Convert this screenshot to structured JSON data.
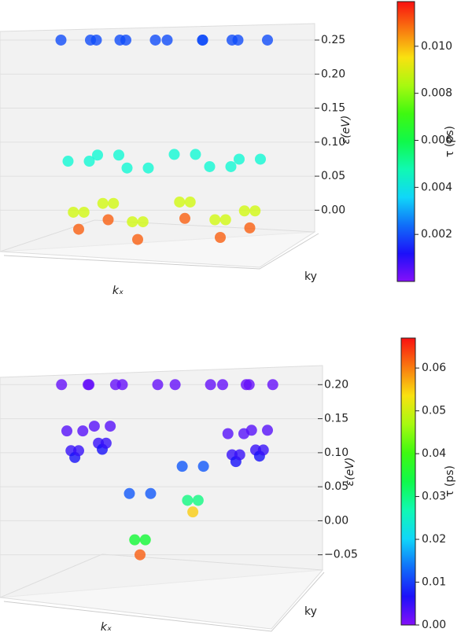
{
  "chart_data": [
    {
      "type": "scatter3d",
      "cmap": "rainbow",
      "zlabel": "ε(eV)",
      "xlabel": "kₓ",
      "ylabel": "ky",
      "colorbar_label": "τ (ps)",
      "xlim": [
        0,
        1
      ],
      "zlim": [
        -0.04,
        0.28
      ],
      "zticks": [
        {
          "value": 0,
          "label": "0.00"
        },
        0.05,
        {
          "value": 0.1,
          "label": "0.10"
        },
        0.15,
        {
          "value": 0.2,
          "label": "0.20"
        },
        0.25
      ],
      "clim": [
        0,
        0.0119
      ],
      "cticks": [
        0.002,
        0.004,
        0.006,
        0.008,
        {
          "value": 0.01,
          "label": "0.010"
        }
      ],
      "series": [
        {
          "x": [
            0.18,
            0.204,
            0.222,
            0.24,
            0.258,
            0.276,
            0.3
          ],
          "values": [
            0.25,
            0.072,
            -0.003,
            -0.028,
            -0.003,
            0.072,
            0.25
          ],
          "c": [
            0.002,
            0.0044,
            0.0088,
            0.011,
            0.0088,
            0.0044,
            0.002
          ]
        },
        {
          "x": [
            0.28,
            0.304,
            0.322,
            0.34,
            0.358,
            0.376,
            0.4
          ],
          "values": [
            0.25,
            0.081,
            0.01,
            -0.014,
            0.01,
            0.081,
            0.25
          ],
          "c": [
            0.002,
            0.0044,
            0.0088,
            0.011,
            0.0088,
            0.0044,
            0.002
          ]
        },
        {
          "x": [
            0.38,
            0.404,
            0.422,
            0.44,
            0.458,
            0.476,
            0.5
          ],
          "values": [
            0.25,
            0.062,
            -0.017,
            -0.043,
            -0.017,
            0.062,
            0.25
          ],
          "c": [
            0.002,
            0.0044,
            0.0088,
            0.011,
            0.0088,
            0.0044,
            0.002
          ]
        },
        {
          "x": [
            0.54,
            0.564,
            0.582,
            0.6,
            0.618,
            0.636,
            0.66
          ],
          "values": [
            0.25,
            0.082,
            0.012,
            -0.012,
            0.012,
            0.082,
            0.25
          ],
          "c": [
            0.002,
            0.0044,
            0.0088,
            0.011,
            0.0088,
            0.0044,
            0.002
          ]
        },
        {
          "x": [
            0.66,
            0.684,
            0.702,
            0.72,
            0.738,
            0.756,
            0.78
          ],
          "values": [
            0.25,
            0.064,
            -0.014,
            -0.04,
            -0.014,
            0.064,
            0.25
          ],
          "c": [
            0.002,
            0.0044,
            0.0088,
            0.011,
            0.0088,
            0.0044,
            0.002
          ]
        },
        {
          "x": [
            0.76,
            0.784,
            0.802,
            0.82,
            0.838,
            0.856,
            0.88
          ],
          "values": [
            0.25,
            0.075,
            -0.001,
            -0.026,
            -0.001,
            0.075,
            0.25
          ],
          "c": [
            0.002,
            0.0044,
            0.0088,
            0.011,
            0.0088,
            0.0044,
            0.002
          ]
        }
      ]
    },
    {
      "type": "scatter3d",
      "cmap": "rainbow",
      "zlabel": "ε(eV)",
      "xlabel": "kₓ",
      "ylabel": "ky",
      "colorbar_label": "τ (ps)",
      "xlim": [
        0,
        1
      ],
      "zlim": [
        -0.07,
        0.22
      ],
      "zticks": [
        {
          "value": -0.05,
          "label": "−0.05"
        },
        {
          "value": 0,
          "label": "0.00"
        },
        0.05,
        {
          "value": 0.1,
          "label": "0.10"
        },
        0.15,
        {
          "value": 0.2,
          "label": "0.20"
        }
      ],
      "clim": [
        0,
        0.067
      ],
      "cticks": [
        {
          "value": 0,
          "label": "0.00"
        },
        0.01,
        0.02,
        0.03,
        0.04,
        0.05,
        0.06
      ],
      "series": [
        {
          "x": [
            0.182,
            0.2,
            0.214,
            0.227,
            0.24,
            0.254,
            0.272
          ],
          "values": [
            0.2,
            0.132,
            0.103,
            0.093,
            0.103,
            0.132,
            0.2
          ],
          "c": [
            0.002,
            0.003,
            0.005,
            0.007,
            0.005,
            0.003,
            0.002
          ]
        },
        {
          "x": [
            0.275,
            0.293,
            0.307,
            0.32,
            0.333,
            0.347,
            0.365
          ],
          "values": [
            0.2,
            0.139,
            0.114,
            0.105,
            0.114,
            0.139,
            0.2
          ],
          "c": [
            0.002,
            0.003,
            0.005,
            0.007,
            0.005,
            0.003,
            0.002
          ]
        },
        {
          "x": [
            0.388,
            0.412,
            0.43,
            0.448,
            0.466,
            0.484,
            0.508
          ],
          "values": [
            0.2,
            0.04,
            -0.028,
            -0.05,
            -0.028,
            0.04,
            0.2
          ],
          "c": [
            0.002,
            0.012,
            0.035,
            0.062,
            0.035,
            0.012,
            0.002
          ]
        },
        {
          "x": [
            0.567,
            0.591,
            0.609,
            0.627,
            0.645,
            0.663,
            0.687
          ],
          "values": [
            0.2,
            0.08,
            0.03,
            0.013,
            0.03,
            0.08,
            0.2
          ],
          "c": [
            0.002,
            0.012,
            0.03,
            0.055,
            0.03,
            0.012,
            0.002
          ]
        },
        {
          "x": [
            0.728,
            0.746,
            0.76,
            0.773,
            0.786,
            0.8,
            0.818
          ],
          "values": [
            0.2,
            0.128,
            0.097,
            0.087,
            0.097,
            0.128,
            0.2
          ],
          "c": [
            0.002,
            0.003,
            0.005,
            0.007,
            0.005,
            0.003,
            0.002
          ]
        },
        {
          "x": [
            0.808,
            0.826,
            0.84,
            0.853,
            0.866,
            0.88,
            0.898
          ],
          "values": [
            0.2,
            0.133,
            0.104,
            0.095,
            0.104,
            0.133,
            0.2
          ],
          "c": [
            0.002,
            0.003,
            0.005,
            0.007,
            0.005,
            0.003,
            0.002
          ]
        }
      ]
    }
  ]
}
